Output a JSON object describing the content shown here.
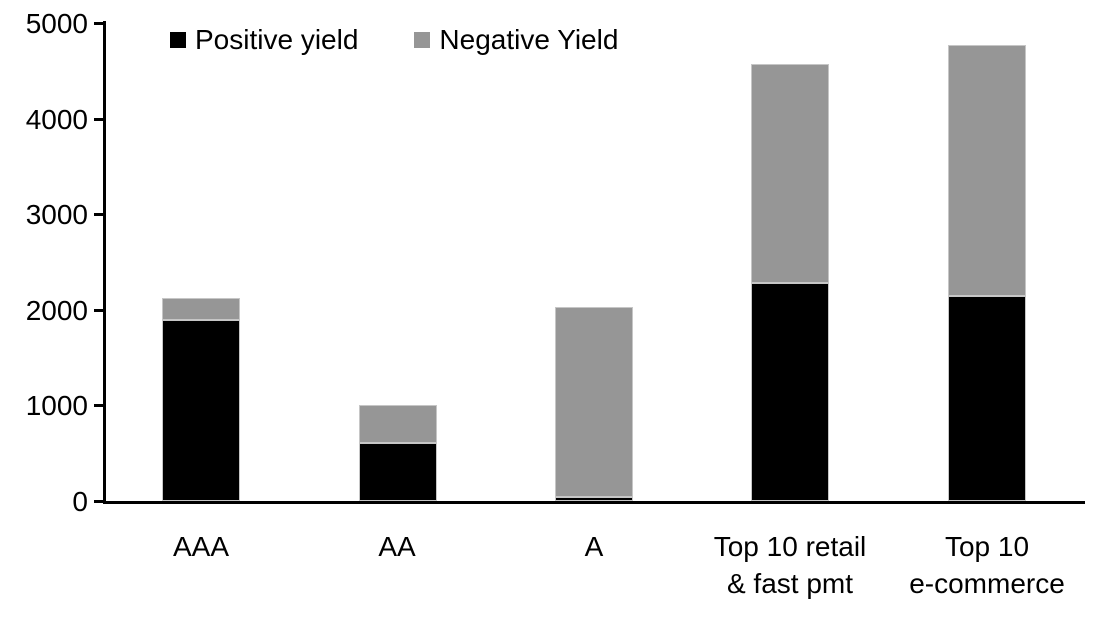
{
  "chart_data": {
    "type": "bar",
    "stacked": true,
    "title": "",
    "xlabel": "",
    "ylabel": "",
    "grid": false,
    "legend_position": "top",
    "categories": [
      "AAA",
      "AA",
      "A",
      "Top 10 retail\n& fast pmt",
      "Top 10\ne-commerce"
    ],
    "series": [
      {
        "name": "Positive yield",
        "color": "#000000",
        "values": [
          1890,
          610,
          40,
          2280,
          2140
        ]
      },
      {
        "name": "Negative Yield",
        "color": "#969696",
        "values": [
          230,
          390,
          1990,
          2290,
          2630
        ]
      }
    ],
    "stack_totals": [
      2120,
      1000,
      2030,
      4570,
      4770
    ],
    "ylim": [
      0,
      5000
    ],
    "ytick_step": 1000,
    "ytick_labels": [
      "0",
      "1000",
      "2000",
      "3000",
      "4000",
      "5000"
    ]
  }
}
